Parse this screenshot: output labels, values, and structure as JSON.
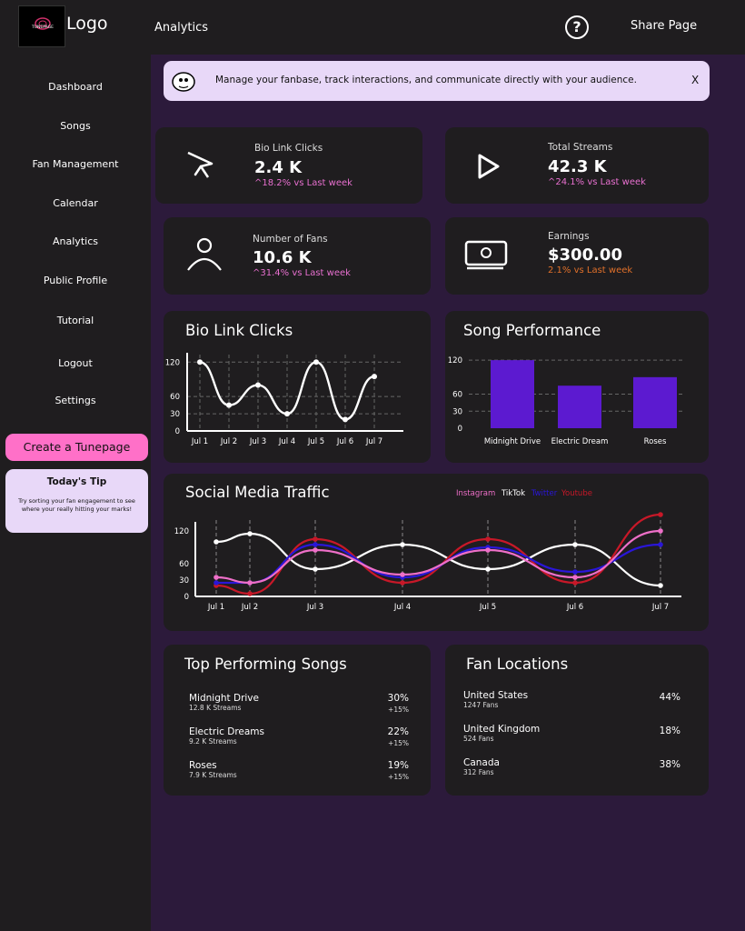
{
  "header": {
    "logo_text": "Logo",
    "logo_badge": "TUNEPAGE",
    "section": "Analytics",
    "share": "Share Page"
  },
  "sidebar": {
    "items": [
      "Dashboard",
      "Songs",
      "Fan Management",
      "Calendar",
      "Analytics",
      "Public Profile",
      "Tutorial",
      "Logout",
      "Settings"
    ],
    "create_button": "Create a Tunepage",
    "tip_title": "Today's Tip",
    "tip_text": "Try sorting your fan engagement to see where your really hitting your marks!"
  },
  "banner": {
    "text": "Manage your fanbase, track interactions, and communicate directly with your audience.",
    "close": "X"
  },
  "stats": [
    {
      "label": "Bio Link Clicks",
      "value": "2.4 K",
      "change": "^18.2% vs Last week",
      "icon": "cursor-icon"
    },
    {
      "label": "Total Streams",
      "value": "42.3 K",
      "change": "^24.1% vs Last week",
      "icon": "play-icon"
    },
    {
      "label": "Number of Fans",
      "value": "10.6 K",
      "change": "^31.4% vs Last week",
      "icon": "user-icon"
    },
    {
      "label": "Earnings",
      "value": "$300.00",
      "change": "2.1% vs Last week",
      "icon": "money-icon"
    }
  ],
  "colors": {
    "accent": "#5c1ad0",
    "pink": "#ff6fc8",
    "orange": "#e0702a",
    "instagram": "#ee6fc8",
    "twitter": "#2a16d8",
    "youtube": "#c81828"
  },
  "chart_data": [
    {
      "type": "line",
      "title": "Bio Link Clicks",
      "categories": [
        "Jul 1",
        "Jul 2",
        "Jul 3",
        "Jul 4",
        "Jul 5",
        "Jul 6",
        "Jul 7"
      ],
      "values": [
        120,
        45,
        80,
        30,
        120,
        20,
        95
      ],
      "yticks": [
        0,
        30,
        60,
        120
      ],
      "ylim": [
        0,
        130
      ],
      "grid": true
    },
    {
      "type": "bar",
      "title": "Song Performance",
      "categories": [
        "Midnight Drive",
        "Electric Dream",
        "Roses"
      ],
      "values": [
        120,
        75,
        90
      ],
      "yticks": [
        0,
        30,
        60,
        120
      ],
      "ylim": [
        0,
        125
      ],
      "grid": true
    },
    {
      "type": "line",
      "title": "Social Media Traffic",
      "categories": [
        "Jul 1",
        "Jul 2",
        "Jul 3",
        "Jul 4",
        "Jul 5",
        "Jul 6",
        "Jul 7"
      ],
      "yticks": [
        0,
        30,
        60,
        120
      ],
      "ylim": [
        0,
        130
      ],
      "grid": true,
      "legend": "top-right",
      "series": [
        {
          "name": "Instagram",
          "color": "#ee6fc8",
          "values": [
            35,
            25,
            85,
            40,
            85,
            35,
            120
          ]
        },
        {
          "name": "TikTok",
          "color": "#ffffff",
          "values": [
            100,
            115,
            50,
            95,
            50,
            95,
            20
          ]
        },
        {
          "name": "Twitter",
          "color": "#2a16d8",
          "values": [
            25,
            25,
            95,
            35,
            90,
            45,
            95
          ]
        },
        {
          "name": "Youtube",
          "color": "#c81828",
          "values": [
            20,
            5,
            105,
            25,
            105,
            25,
            150
          ]
        }
      ]
    }
  ],
  "top_songs": {
    "title": "Top Performing Songs",
    "items": [
      {
        "name": "Midnight Drive",
        "streams": "12.8 K Streams",
        "pct": "30%",
        "delta": "+15%"
      },
      {
        "name": "Electric Dreams",
        "streams": "9.2 K Streams",
        "pct": "22%",
        "delta": "+15%"
      },
      {
        "name": "Roses",
        "streams": "7.9 K Streams",
        "pct": "19%",
        "delta": "+15%"
      }
    ]
  },
  "fan_locations": {
    "title": "Fan Locations",
    "items": [
      {
        "name": "United States",
        "fans": "1247 Fans",
        "pct": "44%"
      },
      {
        "name": "United Kingdom",
        "fans": "524 Fans",
        "pct": "18%"
      },
      {
        "name": "Canada",
        "fans": "312 Fans",
        "pct": "38%"
      }
    ]
  }
}
